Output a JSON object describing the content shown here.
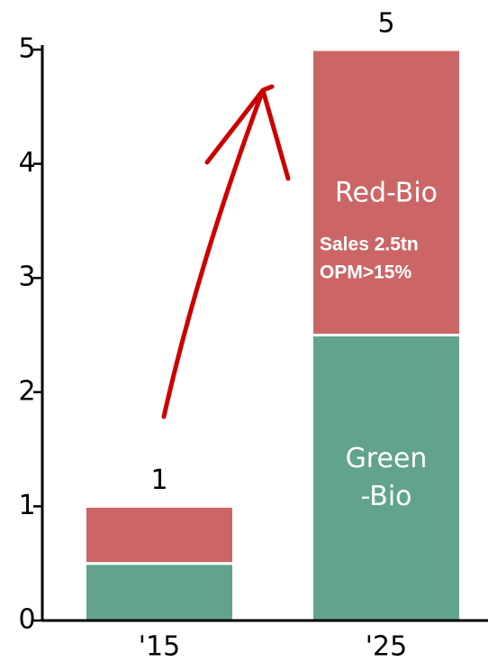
{
  "chart_data": {
    "type": "stacked_bar",
    "categories": [
      "'15",
      "'25"
    ],
    "series": [
      {
        "name": "Green\n-Bio",
        "color": "#62a38c",
        "values": [
          0.5,
          2.5
        ]
      },
      {
        "name": "Red-Bio",
        "color": "#cc6666",
        "values": [
          0.5,
          2.5
        ]
      }
    ],
    "totals": [
      1,
      5
    ],
    "annotations": [
      "Sales 2.5tn",
      "OPM>15%"
    ],
    "ylim": [
      0,
      5
    ],
    "yticks": [
      0,
      1,
      2,
      3,
      4,
      5
    ],
    "grid": false
  }
}
